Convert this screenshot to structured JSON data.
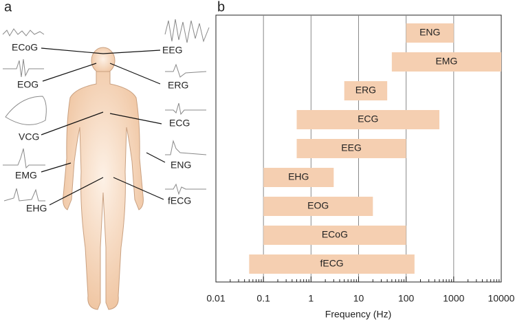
{
  "panel_a": {
    "label": "a",
    "signals": [
      "ECoG",
      "EEG",
      "EOG",
      "ERG",
      "VCG",
      "ECG",
      "EMG",
      "ENG",
      "EHG",
      "fECG"
    ]
  },
  "chart_data": {
    "type": "range-bar",
    "panel_label": "b",
    "x_label": "Frequency (Hz)",
    "categories": [
      "ENG",
      "EMG",
      "ERG",
      "ECG",
      "EEG",
      "EHG",
      "EOG",
      "ECoG",
      "fECG"
    ],
    "low": [
      100,
      50,
      5,
      0.5,
      0.5,
      0.1,
      0.1,
      0.1,
      0.05
    ],
    "high": [
      1000,
      10000,
      40,
      500,
      100,
      3,
      20,
      100,
      150
    ],
    "color": "#f5cfb1",
    "xlim": [
      0.01,
      10000
    ],
    "xticks": [
      0.01,
      0.1,
      1,
      10,
      100,
      1000,
      10000
    ],
    "log_x": true,
    "grid": true
  }
}
